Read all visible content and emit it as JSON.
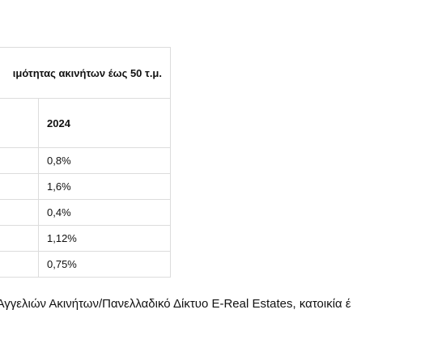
{
  "table": {
    "title": "ιμότητας ακινήτων έως 50 τ.μ.",
    "headers": [
      "",
      "2024"
    ],
    "rows": [
      [
        "",
        "0,8%"
      ],
      [
        "",
        "1,6%"
      ],
      [
        "",
        "0,4%"
      ],
      [
        "",
        "1,12%"
      ],
      [
        "",
        "0,75%"
      ]
    ]
  },
  "caption": "ς Αγγελιών Ακινήτων/Πανελλαδικό Δίκτυο E-Real Estates, κατοικία έ"
}
